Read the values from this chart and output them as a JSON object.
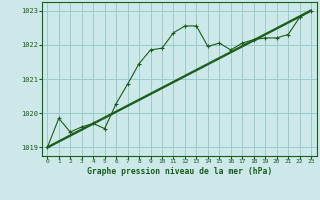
{
  "title": "Graphe pression niveau de la mer (hPa)",
  "background_color": "#cce8e8",
  "line_color": "#1a5c1a",
  "grid_color": "#99cccc",
  "ylim": [
    1018.75,
    1023.25
  ],
  "xlim": [
    -0.5,
    23.5
  ],
  "yticks": [
    1019,
    1020,
    1021,
    1022,
    1023
  ],
  "xticks": [
    0,
    1,
    2,
    3,
    4,
    5,
    6,
    7,
    8,
    9,
    10,
    11,
    12,
    13,
    14,
    15,
    16,
    17,
    18,
    19,
    20,
    21,
    22,
    23
  ],
  "series_jagged": [
    1019.0,
    1019.85,
    1019.45,
    1019.6,
    1019.7,
    1019.55,
    1020.28,
    1020.85,
    1021.45,
    1021.85,
    1021.9,
    1022.35,
    1022.55,
    1022.55,
    1021.95,
    1022.05,
    1021.85,
    1022.05,
    1022.15,
    1022.2,
    1022.2,
    1022.3,
    1022.8,
    1023.0
  ],
  "series_linear_a": [
    1019.0,
    1019.174,
    1019.348,
    1019.522,
    1019.696,
    1019.87,
    1020.043,
    1020.217,
    1020.391,
    1020.565,
    1020.739,
    1020.913,
    1021.087,
    1021.261,
    1021.435,
    1021.609,
    1021.783,
    1021.957,
    1022.13,
    1022.304,
    1022.478,
    1022.652,
    1022.826,
    1023.0
  ],
  "series_linear_b": [
    1019.02,
    1019.194,
    1019.368,
    1019.542,
    1019.716,
    1019.89,
    1020.063,
    1020.237,
    1020.411,
    1020.585,
    1020.759,
    1020.933,
    1021.107,
    1021.281,
    1021.455,
    1021.629,
    1021.803,
    1021.977,
    1022.15,
    1022.324,
    1022.498,
    1022.672,
    1022.846,
    1023.02
  ],
  "series_linear_c": [
    1018.98,
    1019.154,
    1019.328,
    1019.502,
    1019.676,
    1019.85,
    1020.023,
    1020.197,
    1020.371,
    1020.545,
    1020.719,
    1020.893,
    1021.067,
    1021.241,
    1021.415,
    1021.589,
    1021.763,
    1021.937,
    1022.11,
    1022.284,
    1022.458,
    1022.632,
    1022.806,
    1022.98
  ]
}
